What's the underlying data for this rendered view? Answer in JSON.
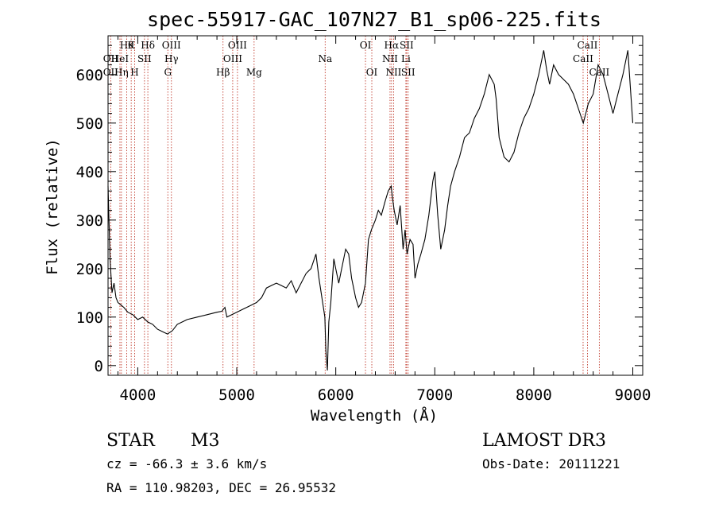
{
  "chart_data": {
    "type": "line",
    "title": "spec-55917-GAC_107N27_B1_sp06-225.fits",
    "xlabel": "Wavelength (Å)",
    "ylabel": "Flux (relative)",
    "xlim": [
      3700,
      9100
    ],
    "ylim": [
      -20,
      680
    ],
    "xticks": [
      4000,
      5000,
      6000,
      7000,
      8000,
      9000
    ],
    "yticks": [
      0,
      100,
      200,
      300,
      400,
      500,
      600
    ],
    "series_name": "",
    "x": [
      3700,
      3720,
      3740,
      3760,
      3780,
      3800,
      3830,
      3860,
      3900,
      3950,
      4000,
      4050,
      4100,
      4150,
      4200,
      4250,
      4300,
      4350,
      4400,
      4450,
      4500,
      4600,
      4700,
      4800,
      4850,
      4880,
      4900,
      4950,
      5000,
      5050,
      5100,
      5150,
      5200,
      5250,
      5300,
      5350,
      5400,
      5450,
      5500,
      5550,
      5600,
      5650,
      5700,
      5750,
      5800,
      5830,
      5860,
      5890,
      5900,
      5915,
      5930,
      5950,
      5980,
      6000,
      6030,
      6060,
      6100,
      6130,
      6160,
      6200,
      6230,
      6260,
      6300,
      6330,
      6360,
      6400,
      6430,
      6460,
      6500,
      6530,
      6560,
      6570,
      6590,
      6620,
      6650,
      6680,
      6700,
      6720,
      6750,
      6780,
      6800,
      6830,
      6860,
      6900,
      6940,
      6980,
      7000,
      7030,
      7060,
      7100,
      7130,
      7160,
      7200,
      7250,
      7300,
      7350,
      7400,
      7450,
      7500,
      7550,
      7600,
      7620,
      7650,
      7700,
      7750,
      7800,
      7850,
      7900,
      7950,
      8000,
      8050,
      8100,
      8130,
      8160,
      8200,
      8250,
      8300,
      8350,
      8400,
      8450,
      8500,
      8550,
      8600,
      8650,
      8700,
      8750,
      8800,
      8850,
      8900,
      8950,
      9000
    ],
    "y": [
      370,
      220,
      150,
      170,
      140,
      130,
      125,
      120,
      110,
      105,
      95,
      100,
      90,
      85,
      75,
      70,
      65,
      72,
      85,
      90,
      95,
      100,
      105,
      110,
      112,
      120,
      100,
      105,
      110,
      115,
      120,
      125,
      130,
      140,
      160,
      165,
      170,
      165,
      160,
      175,
      150,
      170,
      190,
      200,
      230,
      180,
      140,
      100,
      30,
      -10,
      90,
      130,
      220,
      200,
      170,
      200,
      240,
      230,
      180,
      140,
      120,
      130,
      170,
      260,
      280,
      300,
      320,
      310,
      340,
      360,
      370,
      350,
      320,
      290,
      330,
      240,
      280,
      230,
      260,
      250,
      180,
      210,
      230,
      260,
      310,
      380,
      400,
      310,
      240,
      280,
      330,
      370,
      400,
      430,
      470,
      480,
      510,
      530,
      560,
      600,
      580,
      550,
      470,
      430,
      420,
      440,
      480,
      510,
      530,
      560,
      600,
      650,
      610,
      580,
      620,
      600,
      590,
      580,
      560,
      530,
      500,
      540,
      560,
      620,
      600,
      560,
      520,
      560,
      600,
      650,
      500
    ],
    "line_markers": {
      "row1": [
        {
          "x": 3889,
          "label": "Hθ"
        },
        {
          "x": 3934,
          "label": "K"
        },
        {
          "x": 4102,
          "label": "Hδ"
        },
        {
          "x": 4340,
          "label": "OIII"
        },
        {
          "x": 5007,
          "label": "OIII"
        },
        {
          "x": 6300,
          "label": "OI"
        },
        {
          "x": 6563,
          "label": "Hα"
        },
        {
          "x": 6716,
          "label": "SII"
        },
        {
          "x": 8542,
          "label": "CaII"
        }
      ],
      "row2": [
        {
          "x": 3727,
          "label": "OII"
        },
        {
          "x": 3820,
          "label": "HeI"
        },
        {
          "x": 4068,
          "label": "SII"
        },
        {
          "x": 4340,
          "label": "Hγ"
        },
        {
          "x": 4959,
          "label": "OIII"
        },
        {
          "x": 6548,
          "label": "NII"
        },
        {
          "x": 6708,
          "label": "Li"
        },
        {
          "x": 8498,
          "label": "CaII"
        }
      ],
      "row3": [
        {
          "x": 3727,
          "label": "OII"
        },
        {
          "x": 3835,
          "label": "Hη"
        },
        {
          "x": 3969,
          "label": "H"
        },
        {
          "x": 4304,
          "label": "G"
        },
        {
          "x": 4861,
          "label": "Hβ"
        },
        {
          "x": 5175,
          "label": "Mg"
        },
        {
          "x": 6364,
          "label": "OI"
        },
        {
          "x": 6584,
          "label": "NII"
        },
        {
          "x": 6731,
          "label": "SII"
        },
        {
          "x": 8662,
          "label": "CaII"
        }
      ],
      "na": [
        {
          "x": 5893,
          "label": "Na"
        }
      ]
    },
    "marker_color": "#c0392b",
    "grid": false,
    "legend": "none"
  },
  "info": {
    "object_class": "STAR",
    "subclass": "M3",
    "survey": "LAMOST DR3",
    "velocity": "cz = -66.3 ± 3.6 km/s",
    "obs_date": "Obs-Date: 20111221",
    "coords": "RA = 110.98203, DEC =  26.95532"
  }
}
